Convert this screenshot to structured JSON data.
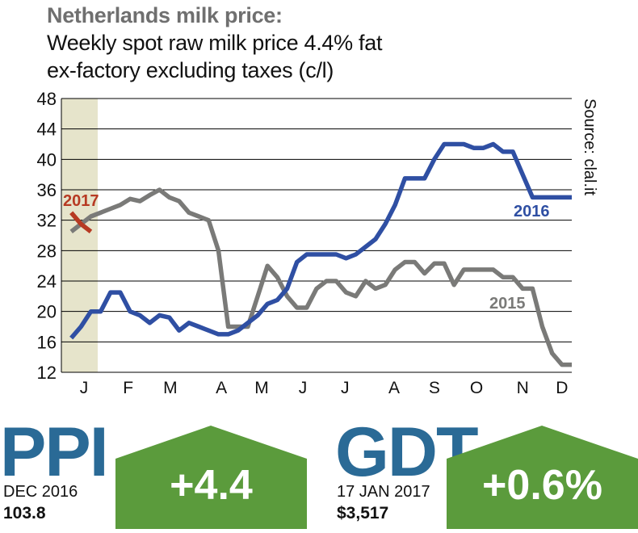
{
  "header": {
    "title": "Netherlands milk price:",
    "subtitle_line1": "Weekly spot raw milk price 4.4% fat",
    "subtitle_line2": "ex-factory excluding taxes (c/l)"
  },
  "source": "Source: clal.it",
  "colors": {
    "series_2016": "#2f4fa3",
    "series_2015": "#7a7a78",
    "series_2017": "#b73a23",
    "highlight_band": "#e6e4cb",
    "badge": "#5b9b3c",
    "big_label": "#2a6a96"
  },
  "chart_data": {
    "type": "line",
    "title": "Netherlands milk price: Weekly spot raw milk price 4.4% fat ex-factory excluding taxes (c/l)",
    "xlabel": "",
    "ylabel": "c/l",
    "ylim": [
      12,
      48
    ],
    "yticks": [
      12,
      16,
      20,
      24,
      28,
      32,
      36,
      40,
      44,
      48
    ],
    "x_range": [
      0,
      52
    ],
    "month_labels": [
      {
        "label": "J",
        "week": 2.3
      },
      {
        "label": "F",
        "week": 6.8
      },
      {
        "label": "M",
        "week": 11.1
      },
      {
        "label": "A",
        "week": 16.3
      },
      {
        "label": "M",
        "week": 20.4
      },
      {
        "label": "J",
        "week": 24.6
      },
      {
        "label": "J",
        "week": 28.9
      },
      {
        "label": "A",
        "week": 33.9
      },
      {
        "label": "S",
        "week": 38.0
      },
      {
        "label": "O",
        "week": 42.3
      },
      {
        "label": "N",
        "week": 47.0
      },
      {
        "label": "D",
        "week": 51.0
      }
    ],
    "highlight_band_weeks": [
      0,
      3.7
    ],
    "series": [
      {
        "name": "2016",
        "x": [
          1,
          2,
          3,
          4,
          5,
          6,
          7,
          8,
          9,
          10,
          11,
          12,
          13,
          14,
          15,
          16,
          17,
          18,
          19,
          20,
          21,
          22,
          23,
          24,
          25,
          26,
          27,
          28,
          29,
          30,
          31,
          32,
          33,
          34,
          35,
          36,
          37,
          38,
          39,
          40,
          41,
          42,
          43,
          44,
          45,
          46,
          47,
          48,
          49,
          50,
          51,
          52
        ],
        "values": [
          16.5,
          18,
          20,
          20,
          22.5,
          22.5,
          20,
          19.5,
          18.5,
          19.5,
          19.2,
          17.5,
          18.5,
          18,
          17.5,
          17,
          17,
          17.5,
          18.5,
          19.5,
          21,
          21.5,
          23,
          26.5,
          27.5,
          27.5,
          27.5,
          27.5,
          27,
          27.5,
          28.5,
          29.5,
          31.5,
          34,
          37.5,
          37.5,
          37.5,
          40,
          42,
          42,
          42,
          41.5,
          41.5,
          42,
          41,
          41,
          38,
          35,
          35,
          35,
          35,
          35
        ]
      },
      {
        "name": "2015",
        "x": [
          1,
          2,
          3,
          4,
          5,
          6,
          7,
          8,
          9,
          10,
          11,
          12,
          13,
          14,
          15,
          16,
          17,
          18,
          19,
          20,
          21,
          22,
          23,
          24,
          25,
          26,
          27,
          28,
          29,
          30,
          31,
          32,
          33,
          34,
          35,
          36,
          37,
          38,
          39,
          40,
          41,
          42,
          43,
          44,
          45,
          46,
          47,
          48,
          49,
          50,
          51,
          52
        ],
        "values": [
          30.5,
          31.5,
          32.5,
          33,
          33.5,
          34,
          34.8,
          34.5,
          35.3,
          36,
          35,
          34.5,
          33,
          32.5,
          32,
          28,
          18,
          18,
          18,
          22,
          26,
          24.5,
          22,
          20.5,
          20.5,
          23,
          24,
          24,
          22.5,
          22,
          24,
          23,
          23.5,
          25.5,
          26.5,
          26.5,
          25,
          26.3,
          26.3,
          23.5,
          25.5,
          25.5,
          25.5,
          25.5,
          24.5,
          24.5,
          23,
          23,
          18,
          14.5,
          13,
          13
        ]
      },
      {
        "name": "2017",
        "x": [
          1,
          2,
          3
        ],
        "values": [
          33,
          31.5,
          30.5
        ]
      }
    ]
  },
  "indicators": {
    "ppi": {
      "label": "PPI",
      "date": "DEC 2016",
      "value": "103.8",
      "change": "+4.4"
    },
    "gdt": {
      "label": "GDT",
      "date": "17 JAN 2017",
      "value": "$3,517",
      "change": "+0.6%"
    }
  }
}
